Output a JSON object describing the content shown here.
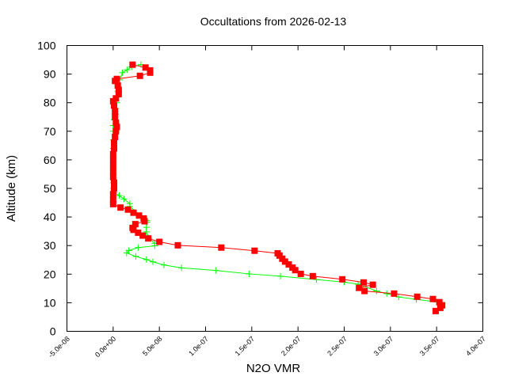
{
  "chart_data": {
    "type": "line",
    "title": "Occultations from 2026-02-13",
    "xlabel": "N2O VMR",
    "ylabel": "Altitude (km)",
    "xlim": [
      -5e-08,
      4e-07
    ],
    "ylim": [
      0,
      100
    ],
    "grid": false,
    "xticks": [
      -5e-08,
      0,
      5e-08,
      1e-07,
      1.5e-07,
      2e-07,
      2.5e-07,
      3e-07,
      3.5e-07,
      4e-07
    ],
    "xtick_labels": [
      "-5.0e-08",
      "0.0e+00",
      "5.0e-08",
      "1.0e-07",
      "1.5e-07",
      "2.0e-07",
      "2.5e-07",
      "3.0e-07",
      "3.5e-07",
      "4.0e-07"
    ],
    "yticks": [
      0,
      10,
      20,
      30,
      40,
      50,
      60,
      70,
      80,
      90,
      100
    ],
    "ytick_labels": [
      "0",
      "10",
      "20",
      "30",
      "40",
      "50",
      "60",
      "70",
      "80",
      "90",
      "100"
    ],
    "series": [
      {
        "color": "#ff0000",
        "marker": "square",
        "x_scale_note_units": "VMR",
        "points": [
          [
            2.1e-08,
            93.3
          ],
          [
            3.5e-08,
            92.3
          ],
          [
            4e-08,
            91.3
          ],
          [
            4e-08,
            90.5
          ],
          [
            2.9e-08,
            89.4
          ],
          [
            4e-09,
            88.3
          ],
          [
            2e-09,
            87.6
          ],
          [
            5e-09,
            86
          ],
          [
            6e-09,
            84.5
          ],
          [
            6e-09,
            83
          ],
          [
            3e-09,
            81.5
          ],
          [
            0.0,
            80.5
          ],
          [
            1e-09,
            79
          ],
          [
            2e-09,
            77
          ],
          [
            2e-09,
            75
          ],
          [
            3e-09,
            73
          ],
          [
            4e-09,
            71.5
          ],
          [
            3e-09,
            70
          ],
          [
            2e-09,
            68
          ],
          [
            1e-09,
            66
          ],
          [
            1e-09,
            64
          ],
          [
            0.0,
            62
          ],
          [
            0.0,
            60
          ],
          [
            0.0,
            58
          ],
          [
            0.0,
            56
          ],
          [
            0.0,
            54
          ],
          [
            1e-09,
            52
          ],
          [
            1e-09,
            50
          ],
          [
            0.0,
            48
          ],
          [
            0.0,
            46
          ],
          [
            0.0,
            44.5
          ],
          [
            8e-09,
            43.3
          ],
          [
            1.6e-08,
            42.6
          ],
          [
            2.2e-08,
            41.5
          ],
          [
            2.8e-08,
            40.5
          ],
          [
            3.3e-08,
            39.5
          ],
          [
            3.4e-08,
            38.5
          ],
          [
            2.4e-08,
            37.5
          ],
          [
            2.1e-08,
            36.2
          ],
          [
            2.2e-08,
            35.5
          ],
          [
            2.7e-08,
            34.5
          ],
          [
            3.2e-08,
            33.5
          ],
          [
            3.8e-08,
            32.5
          ],
          [
            5e-08,
            31.3
          ],
          [
            7e-08,
            30.1
          ],
          [
            1.17e-07,
            29.3
          ],
          [
            1.53e-07,
            28.2
          ],
          [
            1.78e-07,
            27.3
          ],
          [
            1.8e-07,
            26.5
          ],
          [
            1.83e-07,
            25.4
          ],
          [
            1.86e-07,
            24.4
          ],
          [
            1.9e-07,
            23.4
          ],
          [
            1.94e-07,
            22.3
          ],
          [
            1.97e-07,
            21.4
          ],
          [
            2.03e-07,
            20.1
          ],
          [
            2.16e-07,
            19.3
          ],
          [
            2.48e-07,
            18.2
          ],
          [
            2.71e-07,
            17.1
          ],
          [
            2.81e-07,
            16.3
          ],
          [
            2.66e-07,
            15.2
          ],
          [
            2.72e-07,
            14.1
          ],
          [
            3.04e-07,
            13.2
          ],
          [
            3.29e-07,
            12.1
          ],
          [
            3.46e-07,
            11.3
          ],
          [
            3.53e-07,
            10.2
          ],
          [
            3.56e-07,
            9.1
          ],
          [
            3.54e-07,
            8.2
          ],
          [
            3.49e-07,
            7.1
          ]
        ]
      },
      {
        "color": "#00ff00",
        "marker": "plus",
        "points": [
          [
            3e-08,
            93.3
          ],
          [
            2e-08,
            92.5
          ],
          [
            1.5e-08,
            91.5
          ],
          [
            1e-08,
            90.5
          ],
          [
            7e-09,
            88
          ],
          [
            5e-09,
            86
          ],
          [
            5e-09,
            84
          ],
          [
            5e-09,
            82
          ],
          [
            4e-09,
            80
          ],
          [
            3e-09,
            78
          ],
          [
            3e-09,
            76
          ],
          [
            1e-09,
            74
          ],
          [
            0.0,
            72
          ],
          [
            0.0,
            70
          ],
          [
            0.0,
            67
          ],
          [
            0.0,
            64
          ],
          [
            0.0,
            61
          ],
          [
            0.0,
            58
          ],
          [
            0.0,
            55
          ],
          [
            0.0,
            52
          ],
          [
            0.0,
            50
          ],
          [
            1e-09,
            48.5
          ],
          [
            6.6e-09,
            47.5
          ],
          [
            1.17e-08,
            46.3
          ],
          [
            1.8e-08,
            44.7
          ],
          [
            1.8e-08,
            43.7
          ],
          [
            3.65e-08,
            38.8
          ],
          [
            3.65e-08,
            38.2
          ],
          [
            3.6e-08,
            36.4
          ],
          [
            3.6e-08,
            34.8
          ],
          [
            3.9e-08,
            32.5
          ],
          [
            4.5e-08,
            30.8
          ],
          [
            4.5e-08,
            29.9
          ],
          [
            2.7e-08,
            29.3
          ],
          [
            1.7e-08,
            28.3
          ],
          [
            1.45e-08,
            27.4
          ],
          [
            2.45e-08,
            26.2
          ],
          [
            3.6e-08,
            25.1
          ],
          [
            4.3e-08,
            24.3
          ],
          [
            5.5e-08,
            23.2
          ],
          [
            7.4e-08,
            22.2
          ],
          [
            1.11e-07,
            21.3
          ],
          [
            1.47e-07,
            20.1
          ],
          [
            1.81e-07,
            19.3
          ],
          [
            2.2e-07,
            18.1
          ],
          [
            2.5e-07,
            17.2
          ],
          [
            2.65e-07,
            16.5
          ],
          [
            2.85e-07,
            14.1
          ],
          [
            2.96e-07,
            13.2
          ],
          [
            3.09e-07,
            12.0
          ],
          [
            3.28e-07,
            11.2
          ],
          [
            3.5e-07,
            10.3
          ]
        ]
      }
    ]
  }
}
